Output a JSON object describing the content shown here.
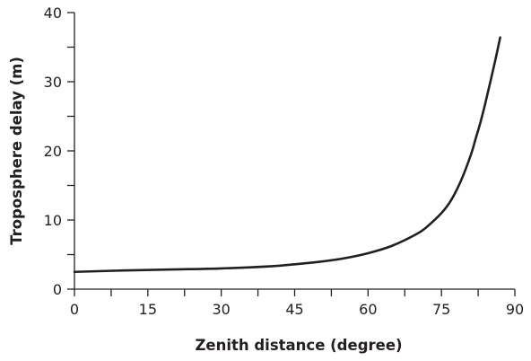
{
  "chart_data": {
    "type": "line",
    "title": "",
    "xlabel": "Zenith distance (degree)",
    "ylabel": "Troposphere delay (m)",
    "xlim": [
      0,
      90
    ],
    "ylim": [
      0,
      40
    ],
    "x_major_ticks": [
      "0",
      "15",
      "30",
      "45",
      "60",
      "75",
      "90"
    ],
    "x_minor_tick_step": 7.5,
    "y_major_ticks": [
      "0",
      "10",
      "20",
      "30",
      "40"
    ],
    "y_minor_tick_step": 5,
    "grid": false,
    "line_color": "#231f20",
    "series": [
      {
        "x": [
          0,
          10,
          20,
          30,
          40,
          45,
          50,
          55,
          60,
          65,
          70,
          72,
          75,
          77,
          79,
          81,
          82,
          83,
          84,
          85,
          86,
          87
        ],
        "y": [
          2.5,
          2.7,
          2.85,
          3.0,
          3.3,
          3.6,
          3.95,
          4.45,
          5.2,
          6.3,
          8.0,
          9.0,
          11.0,
          12.9,
          15.7,
          19.4,
          21.8,
          24.2,
          27.0,
          30.0,
          33.1,
          36.4
        ]
      }
    ]
  }
}
